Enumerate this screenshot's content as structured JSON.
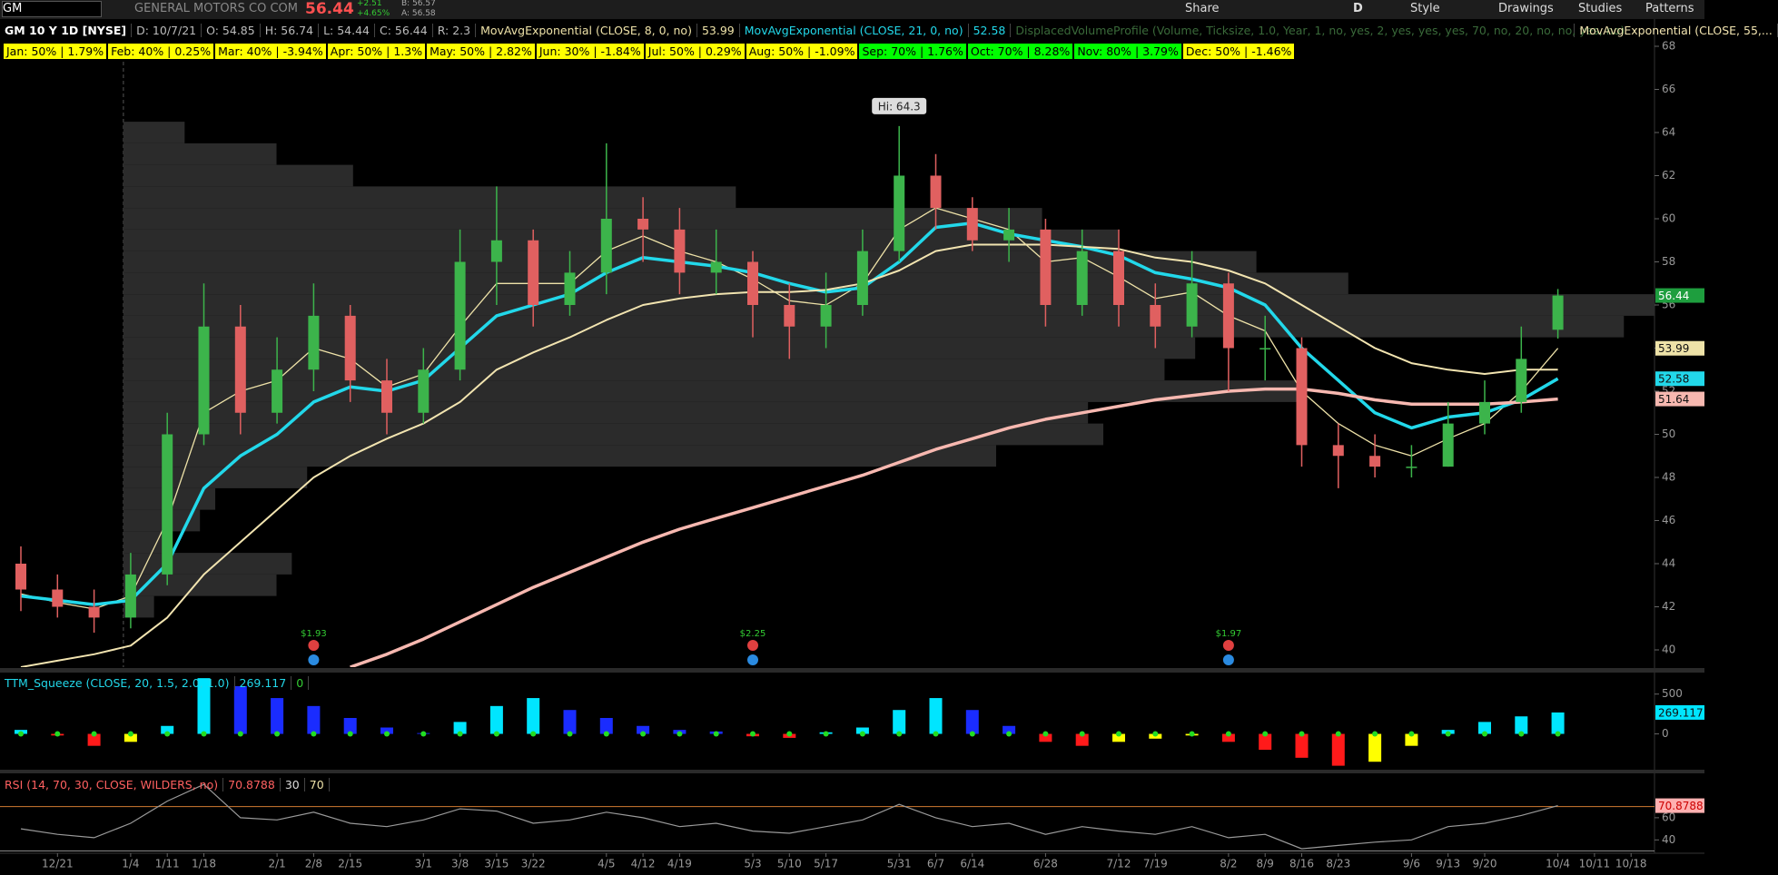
{
  "toolbar": {
    "symbol": "GM",
    "company": "GENERAL MOTORS CO COM",
    "change": "+2.51",
    "change_pct": "+4.65%",
    "bid": "B: 56.57",
    "ask": "A: 56.58",
    "buttons": [
      "Share",
      "D",
      "Style",
      "Drawings",
      "Studies",
      "Patterns"
    ]
  },
  "header": {
    "title": "GM 10 Y 1D [NYSE]",
    "ohlc": [
      "D: 10/7/21",
      "O: 54.85",
      "H: 56.74",
      "L: 54.44",
      "C: 56.44",
      "R: 2.3"
    ]
  },
  "seasonality": [
    {
      "text": "Jan: 50% | 1.79%",
      "color": "#ffff00"
    },
    {
      "text": "Feb: 40% | 0.25%",
      "color": "#ffff00"
    },
    {
      "text": "Mar: 40% | -3.94%",
      "color": "#ffff00"
    },
    {
      "text": "Apr: 50% | 1.3%",
      "color": "#ffff00"
    },
    {
      "text": "May: 50% | 2.82%",
      "color": "#ffff00"
    },
    {
      "text": "Jun: 30% | -1.84%",
      "color": "#ffff00"
    },
    {
      "text": "Jul: 50% | 0.29%",
      "color": "#ffff00"
    },
    {
      "text": "Aug: 50% | -1.09%",
      "color": "#ffff00"
    },
    {
      "text": "Sep: 70% | 1.76%",
      "color": "#00ff00"
    },
    {
      "text": "Oct: 70% | 8.28%",
      "color": "#00ff00"
    },
    {
      "text": "Nov: 80% | 3.79%",
      "color": "#00ff00"
    },
    {
      "text": "Dec: 50% | -1.46%",
      "color": "#ffff00"
    }
  ],
  "chart_data": [
    {
      "type": "candlestick",
      "up_color": "#3cb44b",
      "down_color": "#e06060",
      "last_color": "#1e9e3e",
      "categories": [
        null,
        "12/21",
        null,
        "1/4",
        "1/11",
        "1/18",
        null,
        "2/1",
        "2/8",
        "2/15",
        null,
        "3/1",
        "3/8",
        "3/15",
        "3/22",
        null,
        "4/5",
        "4/12",
        "4/19",
        null,
        "5/3",
        "5/10",
        "5/17",
        null,
        "5/31",
        "6/7",
        "6/14",
        null,
        "6/28",
        null,
        "7/12",
        "7/19",
        null,
        "8/2",
        "8/9",
        "8/16",
        "8/23",
        null,
        "9/6",
        "9/13",
        "9/20",
        null,
        "10/4",
        "10/11",
        "10/18"
      ],
      "open": [
        44,
        42.8,
        42,
        41.5,
        43.5,
        50,
        55,
        51,
        53,
        55.5,
        52.5,
        51,
        53,
        58,
        59,
        56,
        57.5,
        60,
        59.5,
        57.5,
        58,
        56,
        55,
        56,
        58.5,
        62,
        60.5,
        59,
        59.5,
        56,
        58.5,
        56,
        55,
        57,
        54,
        54,
        49.5,
        49,
        48.5,
        48.5,
        50.5,
        51.5,
        54.85,
        null,
        null
      ],
      "high": [
        44.8,
        43.5,
        42.8,
        44.5,
        51,
        57,
        56,
        54.5,
        57,
        56,
        53.5,
        54,
        59.5,
        61.5,
        59.5,
        58.5,
        63.5,
        61,
        60.5,
        59.5,
        58.5,
        57,
        57.5,
        59.5,
        64.3,
        63,
        61,
        60.5,
        60,
        59.5,
        59.5,
        57,
        58.5,
        57.5,
        55.5,
        54.5,
        50.5,
        50,
        49.5,
        51.5,
        52.5,
        55,
        56.74,
        null,
        null
      ],
      "low": [
        41.8,
        41.5,
        40.8,
        41,
        43,
        49.5,
        50,
        50.5,
        52,
        51.5,
        50,
        50.5,
        52.5,
        56,
        55,
        55.5,
        56.5,
        58,
        56.5,
        56.5,
        54.5,
        53.5,
        54,
        55.5,
        58,
        59.5,
        58.5,
        58,
        55,
        55.5,
        55,
        54,
        54.5,
        52,
        52.5,
        48.5,
        47.5,
        48,
        48,
        48.5,
        50,
        51,
        54.44,
        null,
        null
      ],
      "close": [
        42.8,
        42,
        41.5,
        43.5,
        50,
        55,
        51,
        53,
        55.5,
        52.5,
        51,
        53,
        58,
        59,
        56,
        57.5,
        60,
        59.5,
        57.5,
        58,
        56,
        55,
        56,
        58.5,
        62,
        60.5,
        59,
        59.5,
        56,
        58.5,
        56,
        55,
        57,
        54,
        54,
        49.5,
        49,
        48.5,
        48.5,
        50.5,
        51.5,
        53.5,
        56.44,
        null,
        null
      ],
      "series": [
        {
          "name": "MovAvgExponential (CLOSE, 8, 0, no)",
          "color": "#eee2a8",
          "width": 1.3,
          "badge": true,
          "values": [
            42.6,
            42.2,
            41.9,
            42.5,
            46,
            51,
            52,
            52.5,
            54,
            53.5,
            52.2,
            52.8,
            55,
            57,
            57,
            57,
            58.5,
            59.2,
            58.5,
            58,
            57.2,
            56.2,
            56,
            57,
            59.5,
            60.5,
            60,
            59.5,
            58,
            58.2,
            57.3,
            56.3,
            56.6,
            55.5,
            54.8,
            52,
            50.5,
            49.5,
            49,
            49.8,
            50.5,
            52,
            53.99,
            null,
            null
          ]
        },
        {
          "name": "MovAvgExponential (CLOSE, 21, 0, no)",
          "color": "#22d8ea",
          "width": 3.5,
          "badge": true,
          "values": [
            42.5,
            42.3,
            42.1,
            42.3,
            44,
            47.5,
            49,
            50,
            51.5,
            52.2,
            52,
            52.5,
            54,
            55.5,
            56,
            56.5,
            57.5,
            58.2,
            58,
            57.8,
            57.5,
            57,
            56.6,
            56.8,
            58,
            59.6,
            59.8,
            59.3,
            59,
            58.7,
            58.3,
            57.5,
            57.2,
            56.8,
            56,
            54,
            52.5,
            51,
            50.3,
            50.8,
            51,
            51.6,
            52.58,
            null,
            null
          ]
        },
        {
          "name": "MovAvgExponential (CLOSE, 55,...",
          "color": "#f2e4b0",
          "width": 2,
          "badge": false,
          "values": [
            39.2,
            39.5,
            39.8,
            40.2,
            41.5,
            43.5,
            45,
            46.5,
            48,
            49,
            49.8,
            50.5,
            51.5,
            53,
            53.8,
            54.5,
            55.3,
            56,
            56.3,
            56.5,
            56.6,
            56.6,
            56.7,
            57,
            57.6,
            58.5,
            58.8,
            58.8,
            58.8,
            58.7,
            58.6,
            58.2,
            58,
            57.6,
            57,
            56,
            55,
            54,
            53.3,
            53,
            52.8,
            53,
            53,
            null,
            null
          ]
        },
        {
          "color": "#f7b8b0",
          "width": 3.5,
          "badge": true,
          "values": [
            null,
            null,
            null,
            null,
            null,
            null,
            null,
            null,
            null,
            39.2,
            39.8,
            40.5,
            41.3,
            42.1,
            42.9,
            43.6,
            44.3,
            45,
            45.6,
            46.1,
            46.6,
            47.1,
            47.6,
            48.1,
            48.7,
            49.3,
            49.8,
            50.3,
            50.7,
            51,
            51.3,
            51.6,
            51.8,
            52,
            52.1,
            52.1,
            51.9,
            51.6,
            51.4,
            51.4,
            51.4,
            51.5,
            51.64,
            null,
            null
          ]
        }
      ],
      "profile": {
        "name": "DisplacedVolumeProfile (Volume, Ticksize, 1.0, Year, 1, no, yes, 2, yes, yes, yes, 70, no, 20, no, no, yes, no)",
        "color": "#2b2b2b",
        "xlim": [
          0,
          100
        ],
        "prices": [
          64,
          63,
          62,
          61,
          60,
          59,
          58,
          57,
          56,
          55,
          54,
          53,
          52,
          51,
          50,
          49,
          48,
          47,
          46,
          45,
          44,
          43,
          42
        ],
        "volumes": [
          4,
          10,
          15,
          40,
          60,
          65,
          74,
          80,
          100,
          98,
          70,
          68,
          77,
          63,
          64,
          57,
          12,
          6,
          5,
          3,
          11,
          10,
          2
        ]
      },
      "events": [
        {
          "label": "$1.93",
          "at": "2/8"
        },
        {
          "label": "$2.25",
          "at": "5/3"
        },
        {
          "label": "$1.97",
          "at": "8/2"
        }
      ],
      "annotation": {
        "text": "Hi: 64.3",
        "at": "5/31",
        "value": 64.3
      },
      "ylim": [
        39.2,
        69.2
      ],
      "yticks": [
        40,
        42,
        44,
        46,
        48,
        50,
        52,
        54,
        56,
        58,
        60,
        62,
        64,
        66,
        68
      ]
    },
    {
      "type": "bar",
      "title": "TTM_Squeeze (CLOSE, 20, 1.5, 2.0, 1.0)",
      "signal": 0,
      "colors": {
        "pos_up": "#00e5ff",
        "pos_down": "#1a2cff",
        "neg_down": "#ff1a1a",
        "neg_up": "#ffff00",
        "dot": "#22dd22"
      },
      "values": [
        50,
        -20,
        -150,
        -100,
        100,
        700,
        600,
        450,
        350,
        200,
        80,
        10,
        150,
        350,
        450,
        300,
        200,
        100,
        50,
        30,
        -30,
        -50,
        20,
        80,
        300,
        450,
        300,
        100,
        -100,
        -150,
        -100,
        -60,
        -20,
        -100,
        -200,
        -300,
        -400,
        -350,
        -150,
        50,
        150,
        220,
        269.117,
        null,
        null
      ],
      "ylim": [
        -450,
        770
      ],
      "yticks": [
        0,
        500
      ]
    },
    {
      "type": "line",
      "title": "RSI (14, 70, 30, CLOSE, WILDERS, no)",
      "color": "#9a9a9a",
      "levels": [
        30,
        70
      ],
      "level_colors": [
        "#888888",
        "#d07a30"
      ],
      "values": [
        50,
        45,
        42,
        55,
        75,
        90,
        60,
        58,
        65,
        55,
        52,
        58,
        68,
        66,
        55,
        58,
        65,
        60,
        52,
        55,
        48,
        46,
        52,
        58,
        72,
        60,
        52,
        55,
        45,
        52,
        48,
        45,
        52,
        42,
        45,
        32,
        35,
        38,
        40,
        52,
        55,
        62,
        70.8788,
        null,
        null
      ],
      "ylim": [
        28,
        100
      ],
      "yticks": [
        40,
        60
      ]
    }
  ]
}
